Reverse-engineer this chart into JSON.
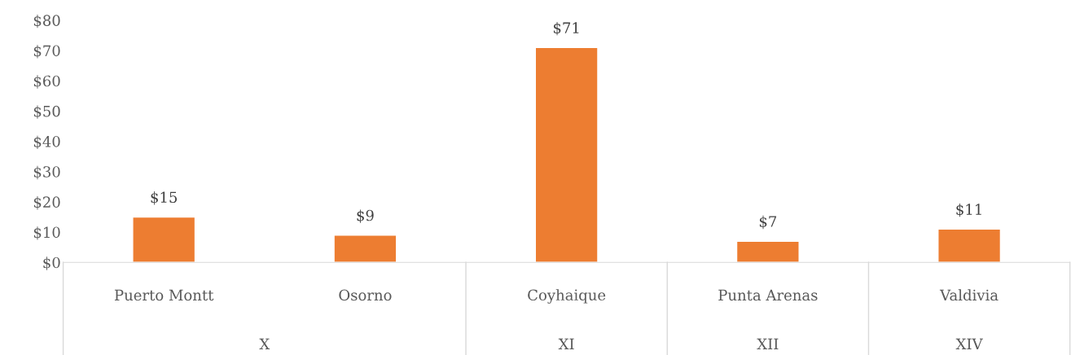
{
  "chart_data": {
    "type": "bar",
    "categories": [
      "Puerto Montt",
      "Osorno",
      "Coyhaique",
      "Punta Arenas",
      "Valdivia"
    ],
    "values": [
      15,
      9,
      71,
      7,
      11
    ],
    "value_labels": [
      "$15",
      "$9",
      "$71",
      "$7",
      "$11"
    ],
    "color": "#ed7d31",
    "ylim": [
      0,
      80
    ],
    "yticks": [
      {
        "value": 0,
        "label": "$0"
      },
      {
        "value": 10,
        "label": "$10"
      },
      {
        "value": 20,
        "label": "$20"
      },
      {
        "value": 30,
        "label": "$30"
      },
      {
        "value": 40,
        "label": "$40"
      },
      {
        "value": 50,
        "label": "$50"
      },
      {
        "value": 60,
        "label": "$60"
      },
      {
        "value": 70,
        "label": "$70"
      },
      {
        "value": 80,
        "label": "$80"
      }
    ],
    "annotations": [
      "X",
      "XI",
      "XII",
      "XIV"
    ],
    "grid": false,
    "legend": false
  }
}
